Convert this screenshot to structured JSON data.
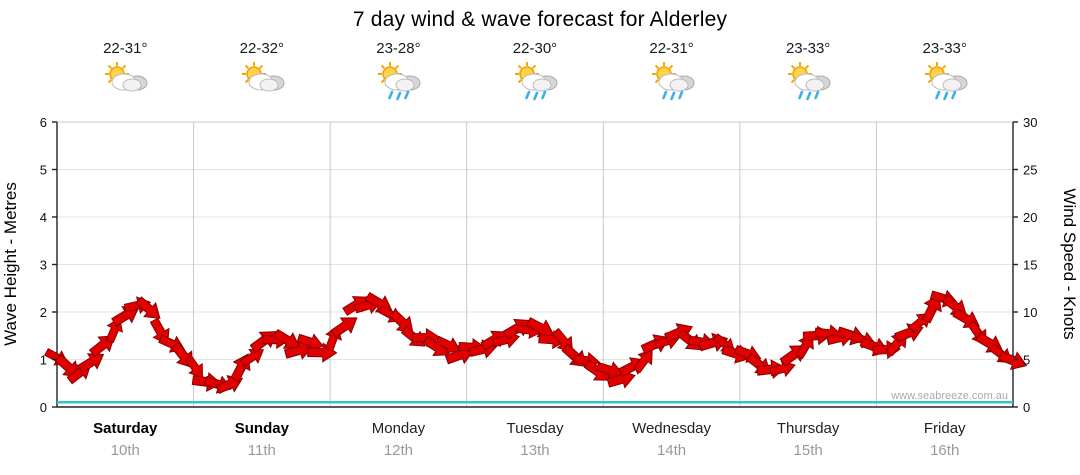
{
  "title": "7 day wind & wave forecast for Alderley",
  "watermark": "www.seabreeze.com.au",
  "left_axis": {
    "label": "Wave Height - Metres",
    "ticks": [
      0,
      1,
      2,
      3,
      4,
      5,
      6
    ]
  },
  "right_axis": {
    "label": "Wind Speed - Knots",
    "ticks": [
      0,
      5,
      10,
      15,
      20,
      25,
      30
    ]
  },
  "days": [
    {
      "name": "Saturday",
      "date": "10th",
      "temp": "22-31°",
      "icon": "sun-cloud",
      "bold": true
    },
    {
      "name": "Sunday",
      "date": "11th",
      "temp": "22-32°",
      "icon": "sun-cloud",
      "bold": true
    },
    {
      "name": "Monday",
      "date": "12th",
      "temp": "23-28°",
      "icon": "sun-cloud-rain",
      "bold": false
    },
    {
      "name": "Tuesday",
      "date": "13th",
      "temp": "22-30°",
      "icon": "sun-cloud-rain",
      "bold": false
    },
    {
      "name": "Wednesday",
      "date": "14th",
      "temp": "22-31°",
      "icon": "sun-cloud-rain",
      "bold": false
    },
    {
      "name": "Thursday",
      "date": "15th",
      "temp": "23-33°",
      "icon": "sun-cloud-rain",
      "bold": false
    },
    {
      "name": "Friday",
      "date": "16th",
      "temp": "23-33°",
      "icon": "sun-cloud-rain",
      "bold": false
    }
  ],
  "colors": {
    "arrow_fill": "#e10000",
    "arrow_stroke": "#8a0000",
    "wave_line": "#35c4cc",
    "grid_light": "#e3e3e3",
    "grid_day": "#c9c9c9",
    "axis": "#222222",
    "tick_text": "#111111",
    "watermark": "#aaaaaa"
  },
  "chart_data": {
    "type": "line",
    "title": "7 day wind & wave forecast for Alderley",
    "categories": [
      "Saturday 10th",
      "Sunday 11th",
      "Monday 12th",
      "Tuesday 13th",
      "Wednesday 14th",
      "Thursday 15th",
      "Friday 16th"
    ],
    "xlabel": "",
    "ylabel_left": "Wave Height - Metres",
    "ylabel_right": "Wind Speed - Knots",
    "ylim_left": [
      0,
      6
    ],
    "ylim_right": [
      0,
      30
    ],
    "grid": "vertical day separators, horizontal metre lines",
    "legend_position": "none",
    "series": [
      {
        "name": "Wind Speed",
        "unit": "knots",
        "axis": "right",
        "style": "red-direction-arrows",
        "points_per_day": 12,
        "values": [
          5.2,
          4.2,
          3.6,
          4.8,
          6.5,
          8.2,
          9.6,
          10.8,
          10.2,
          8.0,
          6.5,
          5.5,
          4.0,
          2.8,
          2.2,
          2.6,
          4.0,
          5.5,
          6.8,
          7.3,
          6.8,
          6.2,
          6.6,
          6.0,
          7.0,
          8.8,
          10.5,
          11.0,
          10.6,
          10.0,
          8.6,
          7.6,
          7.0,
          6.6,
          6.2,
          5.8,
          6.0,
          6.4,
          6.8,
          7.4,
          8.0,
          8.4,
          8.0,
          7.4,
          6.6,
          5.6,
          4.6,
          4.0,
          3.6,
          3.2,
          4.0,
          5.2,
          6.4,
          7.2,
          7.6,
          7.2,
          6.6,
          7.0,
          6.4,
          5.8,
          5.4,
          4.6,
          3.8,
          4.2,
          5.4,
          6.6,
          7.4,
          7.8,
          7.2,
          7.6,
          7.0,
          6.4,
          6.0,
          6.8,
          7.8,
          9.0,
          10.4,
          11.4,
          10.6,
          9.2,
          7.8,
          6.6,
          5.6,
          4.8
        ]
      },
      {
        "name": "Wave Height",
        "unit": "metres",
        "axis": "left",
        "style": "cyan-line",
        "constant_value": 0.1
      }
    ]
  }
}
